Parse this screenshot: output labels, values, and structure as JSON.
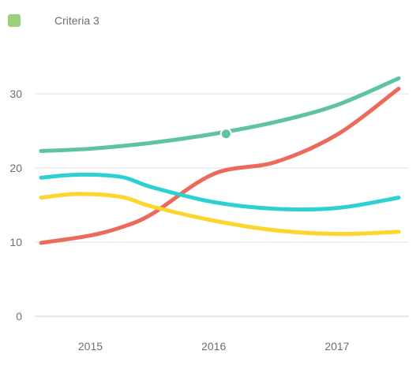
{
  "legend": {
    "label": "Criteria 3",
    "color": "#9ccf7e"
  },
  "chart_data": {
    "type": "line",
    "title": "",
    "xlabel": "",
    "ylabel": "",
    "ylim": [
      0,
      30
    ],
    "y_ticks": [
      0,
      10,
      20,
      30
    ],
    "x_ticks": [
      2015,
      2016,
      2017
    ],
    "xlim": [
      2014.6,
      2017.5
    ],
    "grid": "horizontal",
    "legend_position": "top-left",
    "series": [
      {
        "color": "#5fc3a1",
        "x": [
          2014.6,
          2015.0,
          2015.5,
          2016.0,
          2016.5,
          2017.0,
          2017.5
        ],
        "y": [
          22.3,
          22.6,
          23.4,
          24.6,
          26.2,
          28.5,
          32.1
        ],
        "highlight": {
          "x": 2016.1,
          "y": 24.6
        }
      },
      {
        "color": "#ec6a5c",
        "x": [
          2014.6,
          2015.0,
          2015.25,
          2015.5,
          2016.0,
          2016.5,
          2017.0,
          2017.5
        ],
        "y": [
          9.9,
          10.9,
          12.0,
          13.8,
          19.2,
          20.8,
          24.5,
          30.7
        ]
      },
      {
        "color": "#2dd1d1",
        "x": [
          2014.6,
          2014.9,
          2015.25,
          2015.5,
          2016.0,
          2016.5,
          2017.0,
          2017.5
        ],
        "y": [
          18.7,
          19.1,
          18.8,
          17.4,
          15.4,
          14.5,
          14.6,
          16.0
        ]
      },
      {
        "color": "#fcd52d",
        "x": [
          2014.6,
          2014.9,
          2015.25,
          2015.5,
          2016.0,
          2016.5,
          2017.0,
          2017.5
        ],
        "y": [
          16.0,
          16.5,
          16.1,
          14.8,
          12.9,
          11.6,
          11.1,
          11.4
        ]
      }
    ]
  }
}
